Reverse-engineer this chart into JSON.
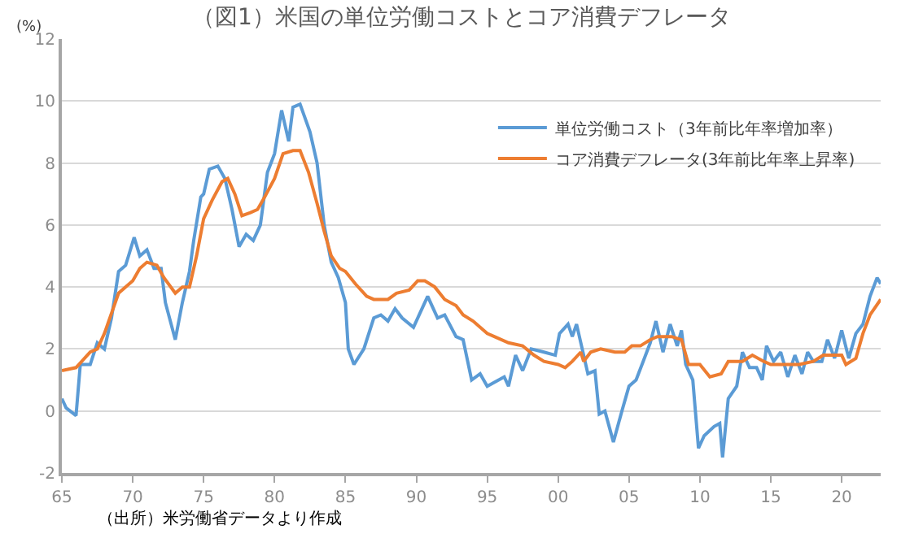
{
  "chart_data": {
    "type": "line",
    "title": "（図1）米国の単位労働コストとコア消費デフレータ",
    "ylabel": "(%)",
    "xlim": [
      1965,
      2022.75
    ],
    "xticks": [
      {
        "value": 1965,
        "label": "65"
      },
      {
        "value": 1970,
        "label": "70"
      },
      {
        "value": 1975,
        "label": "75"
      },
      {
        "value": 1980,
        "label": "80"
      },
      {
        "value": 1985,
        "label": "85"
      },
      {
        "value": 1990,
        "label": "90"
      },
      {
        "value": 1995,
        "label": "95"
      },
      {
        "value": 2000,
        "label": "00"
      },
      {
        "value": 2005,
        "label": "05"
      },
      {
        "value": 2010,
        "label": "10"
      },
      {
        "value": 2015,
        "label": "15"
      },
      {
        "value": 2020,
        "label": "20"
      }
    ],
    "ylim": [
      -2,
      12
    ],
    "yticks": [
      -2,
      0,
      2,
      4,
      6,
      8,
      10,
      12
    ],
    "grid": "y",
    "legend": "top right",
    "series": [
      {
        "name": "単位労働コスト（3年前比年率増加率）",
        "color": "#5b9bd5",
        "x": [
          1965,
          1965.3,
          1966,
          1966.3,
          1967,
          1967.5,
          1968,
          1968.5,
          1969,
          1969.5,
          1969.7,
          1970.1,
          1970.5,
          1971,
          1971.5,
          1972,
          1972.3,
          1973,
          1973.5,
          1974,
          1974.3,
          1974.8,
          1975,
          1975.4,
          1976,
          1976.5,
          1977,
          1977.5,
          1978,
          1978.5,
          1979,
          1979.5,
          1980,
          1980.5,
          1981,
          1981.3,
          1981.8,
          1982.5,
          1983,
          1983.5,
          1984,
          1984.5,
          1985,
          1985.2,
          1985.6,
          1986.3,
          1987,
          1987.5,
          1988,
          1988.5,
          1989,
          1989.8,
          1990.3,
          1990.8,
          1991.5,
          1992,
          1992.8,
          1993.3,
          1993.9,
          1994.5,
          1995,
          1996.2,
          1996.5,
          1997,
          1997.5,
          1998.1,
          1999,
          1999.8,
          2000.1,
          2000.7,
          2001,
          2001.3,
          2001.7,
          2002.1,
          2002.6,
          2002.9,
          2003.3,
          2003.9,
          2004.5,
          2005,
          2005.5,
          2006,
          2006.5,
          2006.9,
          2007.4,
          2007.9,
          2008.4,
          2008.7,
          2009,
          2009.5,
          2009.9,
          2010.3,
          2011,
          2011.4,
          2011.6,
          2012,
          2012.6,
          2013,
          2013.5,
          2014,
          2014.4,
          2014.7,
          2015.2,
          2015.7,
          2016.2,
          2016.7,
          2017.2,
          2017.6,
          2018,
          2018.6,
          2019,
          2019.5,
          2020,
          2020.5,
          2021,
          2021.5,
          2022,
          2022.5,
          2022.75
        ],
        "values": [
          0.4,
          0.1,
          -0.15,
          1.5,
          1.5,
          2.2,
          2.0,
          3.0,
          4.5,
          4.7,
          5.0,
          5.6,
          5.0,
          5.2,
          4.6,
          4.6,
          3.5,
          2.3,
          3.5,
          4.5,
          5.5,
          6.9,
          7.0,
          7.8,
          7.9,
          7.5,
          6.5,
          5.3,
          5.7,
          5.5,
          6.0,
          7.7,
          8.3,
          9.7,
          8.7,
          9.8,
          9.9,
          9.0,
          8.0,
          6.0,
          4.8,
          4.3,
          3.5,
          2.0,
          1.5,
          2.0,
          3.0,
          3.1,
          2.9,
          3.3,
          3.0,
          2.7,
          3.2,
          3.7,
          3.0,
          3.1,
          2.4,
          2.3,
          1.0,
          1.2,
          0.8,
          1.1,
          0.8,
          1.8,
          1.3,
          2.0,
          1.9,
          1.8,
          2.5,
          2.8,
          2.4,
          2.8,
          2.0,
          1.2,
          1.3,
          -0.1,
          0.0,
          -1.0,
          0.0,
          0.8,
          1.0,
          1.6,
          2.2,
          2.9,
          1.9,
          2.8,
          2.1,
          2.6,
          1.5,
          1.0,
          -1.2,
          -0.8,
          -0.5,
          -0.4,
          -1.5,
          0.4,
          0.8,
          1.9,
          1.4,
          1.4,
          1.0,
          2.1,
          1.6,
          1.9,
          1.1,
          1.8,
          1.2,
          1.9,
          1.6,
          1.6,
          2.3,
          1.7,
          2.6,
          1.7,
          2.5,
          2.8,
          3.7,
          4.3,
          4.1
        ]
      },
      {
        "name": "コア消費デフレータ(3年前比年率上昇率)",
        "color": "#ed7d31",
        "x": [
          1965,
          1966,
          1967,
          1967.5,
          1968,
          1969,
          1970,
          1970.5,
          1971,
          1971.7,
          1972.2,
          1973,
          1973.5,
          1974,
          1974.5,
          1975,
          1975.6,
          1976.3,
          1976.7,
          1977.2,
          1977.7,
          1978.3,
          1978.8,
          1979.3,
          1980,
          1980.6,
          1981.3,
          1981.8,
          1982.4,
          1983,
          1983.5,
          1984,
          1984.6,
          1985,
          1985.7,
          1986.5,
          1987,
          1988,
          1988.6,
          1989.5,
          1990.1,
          1990.6,
          1991.3,
          1992,
          1992.8,
          1993.3,
          1994,
          1995,
          1995.5,
          1996.5,
          1997.5,
          1998.3,
          1999,
          2000,
          2000.5,
          2001,
          2001.6,
          2001.8,
          2002.3,
          2003,
          2004,
          2004.7,
          2005.2,
          2005.8,
          2006.5,
          2007,
          2008,
          2008.7,
          2009.2,
          2010,
          2010.7,
          2011.5,
          2012,
          2013,
          2013.7,
          2014.5,
          2015,
          2016,
          2017,
          2018,
          2018.7,
          2019.5,
          2020,
          2020.3,
          2021,
          2021.5,
          2022,
          2022.75
        ],
        "values": [
          1.3,
          1.4,
          1.9,
          2.0,
          2.5,
          3.8,
          4.2,
          4.6,
          4.8,
          4.7,
          4.3,
          3.8,
          4.0,
          4.0,
          5.0,
          6.2,
          6.8,
          7.4,
          7.5,
          7.0,
          6.3,
          6.4,
          6.5,
          6.9,
          7.5,
          8.3,
          8.4,
          8.4,
          7.7,
          6.7,
          5.8,
          5.0,
          4.6,
          4.5,
          4.1,
          3.7,
          3.6,
          3.6,
          3.8,
          3.9,
          4.2,
          4.2,
          4.0,
          3.6,
          3.4,
          3.1,
          2.9,
          2.5,
          2.4,
          2.2,
          2.1,
          1.8,
          1.6,
          1.5,
          1.4,
          1.6,
          1.9,
          1.6,
          1.9,
          2.0,
          1.9,
          1.9,
          2.1,
          2.1,
          2.3,
          2.4,
          2.4,
          2.3,
          1.5,
          1.5,
          1.1,
          1.2,
          1.6,
          1.6,
          1.8,
          1.6,
          1.5,
          1.5,
          1.5,
          1.6,
          1.8,
          1.8,
          1.8,
          1.5,
          1.7,
          2.5,
          3.1,
          3.6
        ]
      }
    ],
    "annotations": [
      "（出所）米労働省データより作成"
    ]
  }
}
